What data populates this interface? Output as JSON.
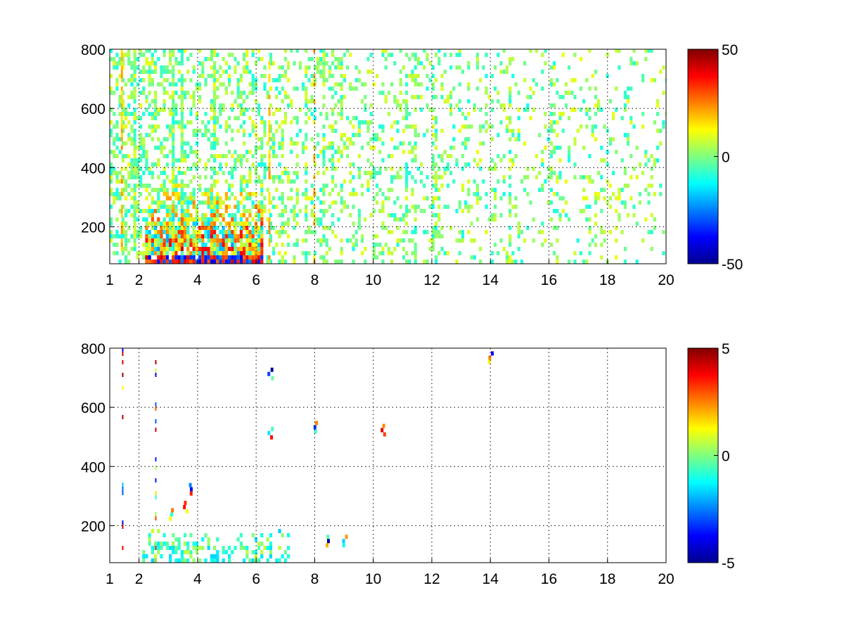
{
  "chart_data": [
    {
      "type": "heatmap",
      "title": "",
      "xlabel": "",
      "ylabel": "",
      "xlim": [
        1,
        20
      ],
      "ylim": [
        75,
        800
      ],
      "xticks": [
        1,
        2,
        4,
        6,
        8,
        10,
        12,
        14,
        16,
        18,
        20
      ],
      "yticks": [
        200,
        400,
        600,
        800
      ],
      "grid": true,
      "colormap": "jet",
      "colorbar": {
        "range": [
          -50,
          50
        ],
        "ticks": [
          -50,
          0,
          50
        ],
        "placement": "right"
      },
      "pattern": {
        "seed": 101,
        "base_density": 0.42,
        "density_decay": 0.07,
        "density_floor": 0.1,
        "spread": 0.22,
        "low_band_ymax": 360,
        "low_band_xrange": [
          2.2,
          6.2
        ],
        "low_band_peak": 0.75,
        "streak_x": [
          1.38,
          6.42,
          7.95
        ]
      }
    },
    {
      "type": "heatmap",
      "title": "",
      "xlabel": "",
      "ylabel": "",
      "xlim": [
        1,
        20
      ],
      "ylim": [
        75,
        800
      ],
      "xticks": [
        1,
        2,
        4,
        6,
        8,
        10,
        12,
        14,
        16,
        18,
        20
      ],
      "yticks": [
        200,
        400,
        600,
        800
      ],
      "grid": true,
      "colormap": "jet",
      "colorbar": {
        "range": [
          -5,
          5
        ],
        "ticks": [
          -5,
          0,
          5
        ],
        "placement": "right"
      },
      "pattern": {
        "seed": 202,
        "cluster_xrange": [
          2.1,
          7.2
        ],
        "cluster_ymax": 200,
        "cluster_density": 0.55,
        "streak_x": [
          1.42,
          2.55
        ],
        "spots": [
          [
            6.45,
            720
          ],
          [
            6.45,
            520
          ],
          [
            7.95,
            540
          ],
          [
            8.35,
            155
          ],
          [
            9.0,
            155
          ],
          [
            10.3,
            530
          ],
          [
            13.95,
            775
          ],
          [
            3.05,
            245
          ],
          [
            3.55,
            270
          ],
          [
            3.75,
            330
          ]
        ]
      }
    }
  ]
}
